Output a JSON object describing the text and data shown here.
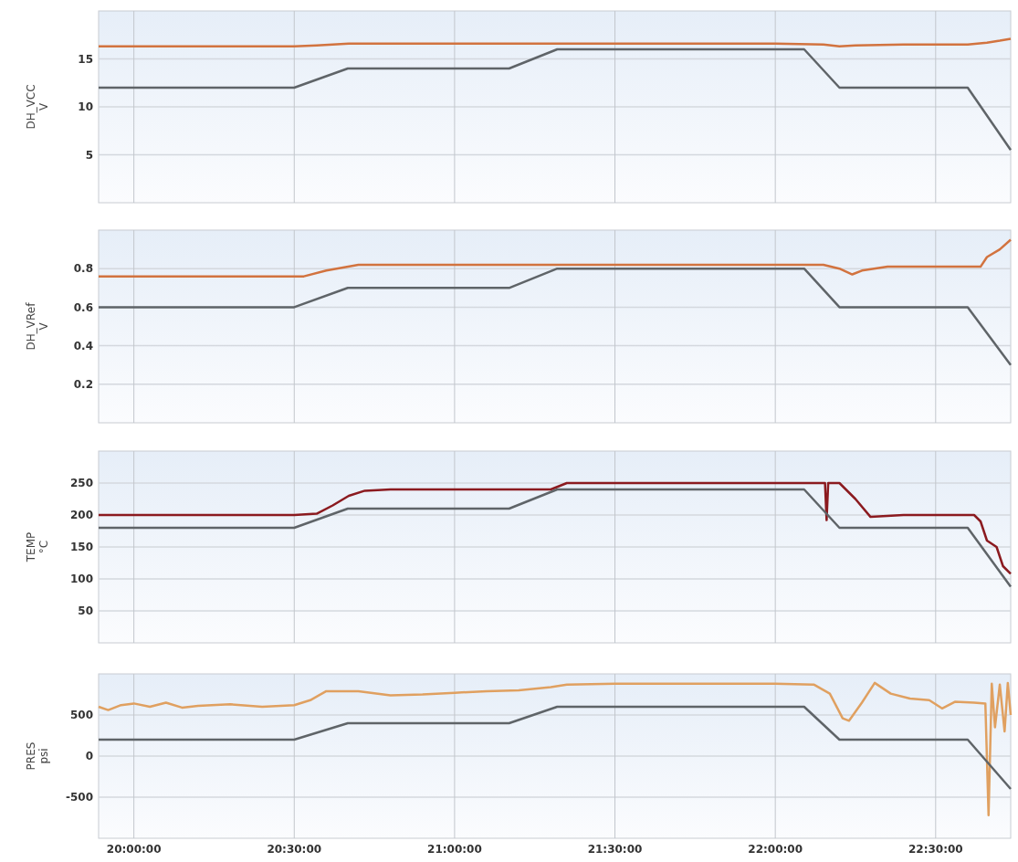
{
  "chart_data": [
    {
      "type": "line",
      "ylabel": "DH_VCC\nV",
      "xlim": [
        19.89,
        22.734
      ],
      "xticks": [
        20,
        20.5,
        21,
        21.5,
        22,
        22.5
      ],
      "ylim": [
        0,
        20
      ],
      "yticks": [
        5,
        10,
        15
      ],
      "grid": true,
      "tick_labels": "y",
      "series": [
        {
          "color": "#d2733f",
          "x": [
            19.89,
            20.2,
            20.5,
            20.57,
            20.62,
            20.67,
            21.0,
            21.5,
            22.0,
            22.15,
            22.2,
            22.25,
            22.4,
            22.6,
            22.66,
            22.7,
            22.734
          ],
          "values": [
            16.3,
            16.3,
            16.3,
            16.4,
            16.5,
            16.6,
            16.6,
            16.6,
            16.6,
            16.5,
            16.3,
            16.4,
            16.5,
            16.5,
            16.7,
            16.9,
            17.1
          ]
        },
        {
          "color": "#5f6468",
          "x": [
            19.89,
            20.5,
            20.667,
            21.17,
            21.32,
            22.09,
            22.2,
            22.6,
            22.734
          ],
          "values": [
            12,
            12,
            14,
            14,
            16,
            16,
            12,
            12,
            5.5
          ]
        }
      ]
    },
    {
      "type": "line",
      "ylabel": "DH_VRef\nV",
      "xlim": [
        19.89,
        22.734
      ],
      "xticks": [
        20,
        20.5,
        21,
        21.5,
        22,
        22.5
      ],
      "ylim": [
        0,
        1
      ],
      "yticks": [
        0.2,
        0.4,
        0.6,
        0.8
      ],
      "grid": true,
      "tick_labels": "y",
      "series": [
        {
          "color": "#d2733f",
          "x": [
            19.89,
            20.2,
            20.53,
            20.6,
            20.7,
            21.0,
            21.5,
            22.0,
            22.15,
            22.2,
            22.24,
            22.27,
            22.35,
            22.5,
            22.64,
            22.66,
            22.7,
            22.734
          ],
          "values": [
            0.76,
            0.76,
            0.76,
            0.79,
            0.82,
            0.82,
            0.82,
            0.82,
            0.82,
            0.8,
            0.77,
            0.79,
            0.81,
            0.81,
            0.81,
            0.86,
            0.9,
            0.95
          ]
        },
        {
          "color": "#5f6468",
          "x": [
            19.89,
            20.5,
            20.667,
            21.17,
            21.32,
            22.09,
            22.2,
            22.6,
            22.734
          ],
          "values": [
            0.6,
            0.6,
            0.7,
            0.7,
            0.8,
            0.8,
            0.6,
            0.6,
            0.3
          ]
        }
      ]
    },
    {
      "type": "line",
      "ylabel": "TEMP\n°C",
      "xlim": [
        19.89,
        22.734
      ],
      "xticks": [
        20,
        20.5,
        21,
        21.5,
        22,
        22.5
      ],
      "ylim": [
        0,
        300
      ],
      "yticks": [
        50,
        100,
        150,
        200,
        250
      ],
      "grid": true,
      "tick_labels": "y",
      "series": [
        {
          "color": "#8b1a1f",
          "x": [
            19.89,
            20.2,
            20.5,
            20.57,
            20.62,
            20.67,
            20.72,
            20.8,
            21.0,
            21.3,
            21.35,
            21.5,
            22.0,
            22.155,
            22.16,
            22.165,
            22.2,
            22.25,
            22.297,
            22.4,
            22.62,
            22.64,
            22.66,
            22.69,
            22.71,
            22.734
          ],
          "values": [
            200,
            200,
            200,
            202,
            215,
            230,
            238,
            240,
            240,
            240,
            250,
            250,
            250,
            250,
            192,
            250,
            250,
            225,
            197,
            200,
            200,
            190,
            160,
            150,
            120,
            108
          ]
        },
        {
          "color": "#5f6468",
          "x": [
            19.89,
            20.5,
            20.667,
            21.17,
            21.32,
            22.09,
            22.2,
            22.6,
            22.734
          ],
          "values": [
            180,
            180,
            210,
            210,
            240,
            240,
            180,
            180,
            88
          ]
        }
      ]
    },
    {
      "type": "line",
      "ylabel": "PRES\npsi",
      "xlim": [
        19.89,
        22.734
      ],
      "xticks": [
        {
          "value": 20,
          "label": "20:00:00"
        },
        {
          "value": 20.5,
          "label": "20:30:00"
        },
        {
          "value": 21,
          "label": "21:00:00"
        },
        {
          "value": 21.5,
          "label": "21:30:00"
        },
        {
          "value": 22,
          "label": "22:00:00"
        },
        {
          "value": 22.5,
          "label": "22:30:00"
        }
      ],
      "ylim": [
        -1000,
        1000
      ],
      "yticks": [
        -500,
        0,
        500
      ],
      "grid": true,
      "series": [
        {
          "color": "#e0a060",
          "x": [
            19.89,
            19.92,
            19.96,
            20.0,
            20.05,
            20.1,
            20.15,
            20.2,
            20.3,
            20.4,
            20.5,
            20.55,
            20.6,
            20.7,
            20.8,
            20.9,
            21.0,
            21.1,
            21.2,
            21.3,
            21.35,
            21.5,
            21.8,
            22.0,
            22.12,
            22.17,
            22.21,
            22.23,
            22.27,
            22.31,
            22.36,
            22.42,
            22.48,
            22.52,
            22.56,
            22.62,
            22.655,
            22.665,
            22.675,
            22.685,
            22.7,
            22.715,
            22.725,
            22.734
          ],
          "values": [
            600,
            560,
            620,
            640,
            600,
            650,
            590,
            610,
            630,
            600,
            620,
            680,
            790,
            790,
            740,
            750,
            770,
            790,
            800,
            840,
            870,
            880,
            880,
            880,
            870,
            760,
            460,
            430,
            650,
            890,
            760,
            700,
            680,
            580,
            660,
            650,
            640,
            -720,
            880,
            350,
            870,
            300,
            890,
            500
          ]
        },
        {
          "color": "#5f6468",
          "x": [
            19.89,
            20.5,
            20.667,
            21.17,
            21.32,
            22.09,
            22.2,
            22.6,
            22.734
          ],
          "values": [
            200,
            200,
            400,
            400,
            600,
            600,
            200,
            200,
            -400
          ]
        }
      ]
    }
  ]
}
